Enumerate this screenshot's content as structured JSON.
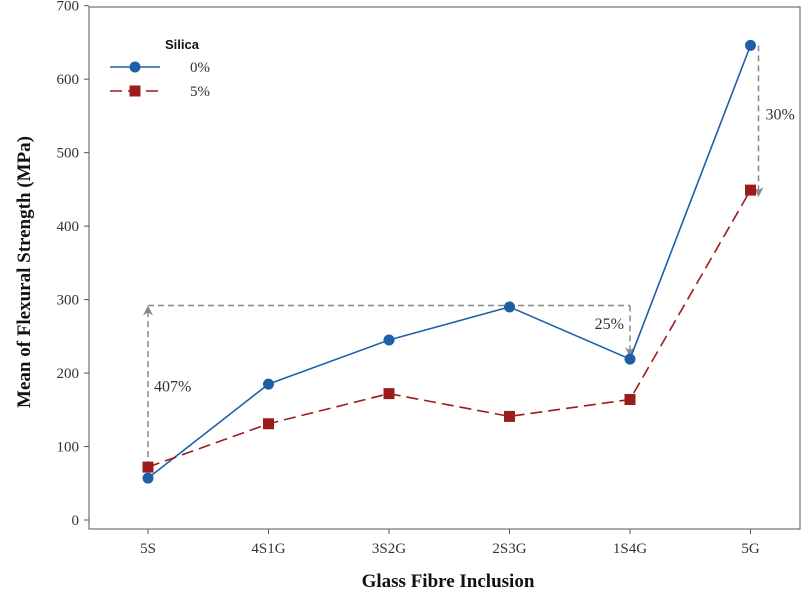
{
  "chart_data": {
    "type": "line",
    "title": "",
    "xlabel": "Glass Fibre Inclusion",
    "ylabel": "Mean of Flexural Strength (MPa)",
    "categories": [
      "5S",
      "4S1G",
      "3S2G",
      "2S3G",
      "1S4G",
      "5G"
    ],
    "ylim": [
      0,
      700
    ],
    "yticks": [
      0,
      100,
      200,
      300,
      400,
      500,
      600,
      700
    ],
    "grid": false,
    "legend": {
      "title": "Silica",
      "placement": "top-left"
    },
    "series": [
      {
        "name": "0%",
        "values": [
          57,
          185,
          245,
          290,
          219,
          646
        ],
        "color": "#1f5fa8",
        "marker": "circle",
        "line": "solid"
      },
      {
        "name": "5%",
        "values": [
          72,
          131,
          172,
          141,
          164,
          449
        ],
        "color": "#9b1c1c",
        "marker": "square",
        "line": "dashed"
      }
    ],
    "annotations": [
      {
        "label": "407%",
        "from": {
          "category": "5S",
          "y": 72
        },
        "to": {
          "category": "5S",
          "y": 292
        },
        "color": "#888888"
      },
      {
        "label": "25%",
        "from": {
          "category": "2S3G",
          "y": 292
        },
        "to": {
          "category": "1S4G",
          "y": 219
        },
        "color": "#888888"
      },
      {
        "label": "30%",
        "from": {
          "category": "5G",
          "y": 646
        },
        "to": {
          "category": "5G",
          "y": 449
        },
        "color": "#888888"
      }
    ]
  }
}
